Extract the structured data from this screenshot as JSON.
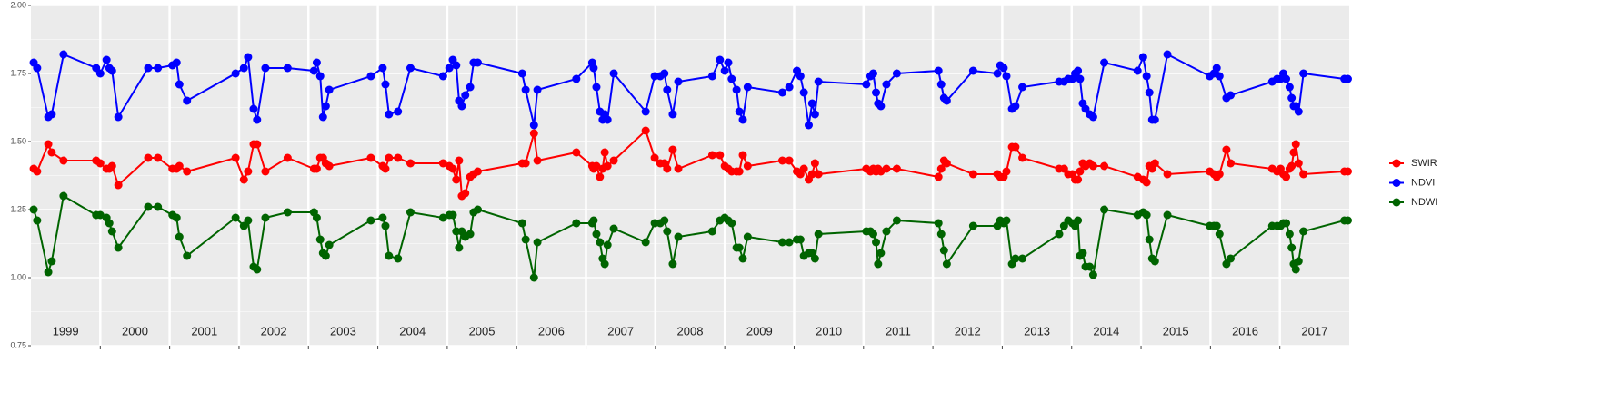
{
  "chart_data": {
    "type": "line",
    "x": [
      1999.04,
      1999.09,
      1999.25,
      1999.3,
      1999.47,
      1999.94,
      2000.0,
      2000.09,
      2000.13,
      2000.17,
      2000.26,
      2000.69,
      2000.83,
      2001.04,
      2001.1,
      2001.14,
      2001.25,
      2001.95,
      2002.07,
      2002.13,
      2002.21,
      2002.26,
      2002.38,
      2002.7,
      2003.08,
      2003.12,
      2003.17,
      2003.21,
      2003.25,
      2003.3,
      2003.9,
      2004.07,
      2004.11,
      2004.16,
      2004.29,
      2004.47,
      2004.94,
      2005.03,
      2005.08,
      2005.13,
      2005.17,
      2005.21,
      2005.26,
      2005.33,
      2005.38,
      2005.44,
      2006.08,
      2006.13,
      2006.25,
      2006.3,
      2006.86,
      2007.09,
      2007.11,
      2007.15,
      2007.2,
      2007.24,
      2007.27,
      2007.31,
      2007.4,
      2007.86,
      2007.99,
      2008.07,
      2008.13,
      2008.17,
      2008.25,
      2008.33,
      2008.82,
      2008.93,
      2009.0,
      2009.05,
      2009.1,
      2009.17,
      2009.21,
      2009.26,
      2009.33,
      2009.83,
      2009.93,
      2010.04,
      2010.09,
      2010.14,
      2010.21,
      2010.26,
      2010.3,
      2010.35,
      2011.04,
      2011.1,
      2011.14,
      2011.18,
      2011.21,
      2011.25,
      2011.33,
      2011.48,
      2012.08,
      2012.12,
      2012.16,
      2012.2,
      2012.58,
      2012.93,
      2012.97,
      2013.02,
      2013.06,
      2013.14,
      2013.19,
      2013.29,
      2013.82,
      2013.89,
      2013.95,
      2014.01,
      2014.05,
      2014.09,
      2014.12,
      2014.16,
      2014.2,
      2014.26,
      2014.31,
      2014.47,
      2014.95,
      2015.03,
      2015.08,
      2015.12,
      2015.16,
      2015.2,
      2015.38,
      2015.99,
      2016.05,
      2016.09,
      2016.13,
      2016.23,
      2016.29,
      2016.89,
      2016.96,
      2017.01,
      2017.05,
      2017.09,
      2017.14,
      2017.17,
      2017.2,
      2017.23,
      2017.27,
      2017.34,
      2017.93,
      2017.98
    ],
    "series": [
      {
        "name": "SWIR",
        "color": "#ff0000",
        "values": [
          1.4,
          1.39,
          1.49,
          1.46,
          1.43,
          1.43,
          1.42,
          1.4,
          1.4,
          1.41,
          1.34,
          1.44,
          1.44,
          1.4,
          1.4,
          1.41,
          1.39,
          1.44,
          1.36,
          1.39,
          1.49,
          1.49,
          1.39,
          1.44,
          1.4,
          1.4,
          1.44,
          1.44,
          1.42,
          1.41,
          1.44,
          1.41,
          1.4,
          1.44,
          1.44,
          1.42,
          1.42,
          1.41,
          1.4,
          1.36,
          1.43,
          1.3,
          1.31,
          1.37,
          1.38,
          1.39,
          1.42,
          1.42,
          1.53,
          1.43,
          1.46,
          1.41,
          1.4,
          1.41,
          1.37,
          1.4,
          1.46,
          1.41,
          1.43,
          1.54,
          1.44,
          1.42,
          1.42,
          1.4,
          1.47,
          1.4,
          1.45,
          1.45,
          1.41,
          1.4,
          1.39,
          1.39,
          1.39,
          1.45,
          1.41,
          1.43,
          1.43,
          1.39,
          1.38,
          1.4,
          1.36,
          1.38,
          1.42,
          1.38,
          1.4,
          1.39,
          1.4,
          1.39,
          1.4,
          1.39,
          1.4,
          1.4,
          1.37,
          1.4,
          1.43,
          1.42,
          1.38,
          1.38,
          1.37,
          1.37,
          1.39,
          1.48,
          1.48,
          1.44,
          1.4,
          1.4,
          1.38,
          1.38,
          1.36,
          1.36,
          1.39,
          1.42,
          1.41,
          1.42,
          1.41,
          1.41,
          1.37,
          1.36,
          1.35,
          1.41,
          1.4,
          1.42,
          1.38,
          1.39,
          1.38,
          1.37,
          1.38,
          1.47,
          1.42,
          1.4,
          1.39,
          1.4,
          1.38,
          1.37,
          1.4,
          1.41,
          1.46,
          1.49,
          1.42,
          1.38,
          1.39,
          1.39
        ]
      },
      {
        "name": "NDVI",
        "color": "#0000ff",
        "values": [
          1.79,
          1.77,
          1.59,
          1.6,
          1.82,
          1.77,
          1.75,
          1.8,
          1.77,
          1.76,
          1.59,
          1.77,
          1.77,
          1.78,
          1.79,
          1.71,
          1.65,
          1.75,
          1.77,
          1.81,
          1.62,
          1.58,
          1.77,
          1.77,
          1.76,
          1.79,
          1.74,
          1.59,
          1.63,
          1.69,
          1.74,
          1.77,
          1.71,
          1.6,
          1.61,
          1.77,
          1.74,
          1.77,
          1.8,
          1.78,
          1.65,
          1.63,
          1.67,
          1.7,
          1.79,
          1.79,
          1.75,
          1.69,
          1.56,
          1.69,
          1.73,
          1.79,
          1.77,
          1.7,
          1.61,
          1.58,
          1.6,
          1.58,
          1.75,
          1.61,
          1.74,
          1.74,
          1.75,
          1.69,
          1.6,
          1.72,
          1.74,
          1.8,
          1.76,
          1.79,
          1.73,
          1.69,
          1.61,
          1.58,
          1.7,
          1.68,
          1.7,
          1.76,
          1.74,
          1.68,
          1.56,
          1.64,
          1.6,
          1.72,
          1.71,
          1.74,
          1.75,
          1.68,
          1.64,
          1.63,
          1.71,
          1.75,
          1.76,
          1.71,
          1.66,
          1.65,
          1.76,
          1.75,
          1.78,
          1.77,
          1.74,
          1.62,
          1.63,
          1.7,
          1.72,
          1.72,
          1.73,
          1.73,
          1.75,
          1.76,
          1.73,
          1.64,
          1.62,
          1.6,
          1.59,
          1.79,
          1.76,
          1.81,
          1.74,
          1.68,
          1.58,
          1.58,
          1.82,
          1.74,
          1.75,
          1.77,
          1.74,
          1.66,
          1.67,
          1.72,
          1.73,
          1.73,
          1.75,
          1.73,
          1.7,
          1.66,
          1.63,
          1.63,
          1.61,
          1.75,
          1.73,
          1.73
        ]
      },
      {
        "name": "NDWI",
        "color": "#006400",
        "values": [
          1.25,
          1.21,
          1.02,
          1.06,
          1.3,
          1.23,
          1.23,
          1.22,
          1.2,
          1.17,
          1.11,
          1.26,
          1.26,
          1.23,
          1.22,
          1.15,
          1.08,
          1.22,
          1.19,
          1.21,
          1.04,
          1.03,
          1.22,
          1.24,
          1.24,
          1.22,
          1.14,
          1.09,
          1.08,
          1.12,
          1.21,
          1.22,
          1.19,
          1.08,
          1.07,
          1.24,
          1.22,
          1.23,
          1.23,
          1.17,
          1.11,
          1.17,
          1.15,
          1.16,
          1.24,
          1.25,
          1.2,
          1.14,
          1.0,
          1.13,
          1.2,
          1.2,
          1.21,
          1.16,
          1.13,
          1.07,
          1.05,
          1.12,
          1.18,
          1.13,
          1.2,
          1.2,
          1.21,
          1.17,
          1.05,
          1.15,
          1.17,
          1.21,
          1.22,
          1.21,
          1.2,
          1.11,
          1.11,
          1.07,
          1.15,
          1.13,
          1.13,
          1.14,
          1.14,
          1.08,
          1.09,
          1.09,
          1.07,
          1.16,
          1.17,
          1.17,
          1.16,
          1.13,
          1.05,
          1.09,
          1.17,
          1.21,
          1.2,
          1.16,
          1.1,
          1.05,
          1.19,
          1.19,
          1.21,
          1.2,
          1.21,
          1.05,
          1.07,
          1.07,
          1.16,
          1.19,
          1.21,
          1.2,
          1.19,
          1.21,
          1.08,
          1.09,
          1.04,
          1.04,
          1.01,
          1.25,
          1.23,
          1.24,
          1.23,
          1.14,
          1.07,
          1.06,
          1.23,
          1.19,
          1.19,
          1.19,
          1.16,
          1.05,
          1.07,
          1.19,
          1.19,
          1.19,
          1.2,
          1.2,
          1.16,
          1.11,
          1.05,
          1.03,
          1.06,
          1.17,
          1.21,
          1.21
        ]
      }
    ],
    "xlim": [
      1999,
      2018
    ],
    "xticks": [
      {
        "value": 1999.5,
        "label": "1999"
      },
      {
        "value": 2000.5,
        "label": "2000"
      },
      {
        "value": 2001.5,
        "label": "2001"
      },
      {
        "value": 2002.5,
        "label": "2002"
      },
      {
        "value": 2003.5,
        "label": "2003"
      },
      {
        "value": 2004.5,
        "label": "2004"
      },
      {
        "value": 2005.5,
        "label": "2005"
      },
      {
        "value": 2006.5,
        "label": "2006"
      },
      {
        "value": 2007.5,
        "label": "2007"
      },
      {
        "value": 2008.5,
        "label": "2008"
      },
      {
        "value": 2009.5,
        "label": "2009"
      },
      {
        "value": 2010.5,
        "label": "2010"
      },
      {
        "value": 2011.5,
        "label": "2011"
      },
      {
        "value": 2012.5,
        "label": "2012"
      },
      {
        "value": 2013.5,
        "label": "2013"
      },
      {
        "value": 2014.5,
        "label": "2014"
      },
      {
        "value": 2015.5,
        "label": "2015"
      },
      {
        "value": 2016.5,
        "label": "2016"
      },
      {
        "value": 2017.5,
        "label": "2017"
      }
    ],
    "year_breaks": [
      2000,
      2001,
      2002,
      2003,
      2004,
      2005,
      2006,
      2007,
      2008,
      2009,
      2010,
      2011,
      2012,
      2013,
      2014,
      2015,
      2016,
      2017
    ],
    "ylim": [
      0.75,
      2.0
    ],
    "yticks": [
      {
        "value": 0.75,
        "label": "0.75"
      },
      {
        "value": 1.0,
        "label": "1.00"
      },
      {
        "value": 1.25,
        "label": "1.25"
      },
      {
        "value": 1.5,
        "label": "1.50"
      },
      {
        "value": 1.75,
        "label": "1.75"
      },
      {
        "value": 2.0,
        "label": "2.00"
      }
    ],
    "yminor": [
      0.875,
      1.125,
      1.375,
      1.625,
      1.875
    ],
    "grid": true,
    "legend": "right"
  }
}
